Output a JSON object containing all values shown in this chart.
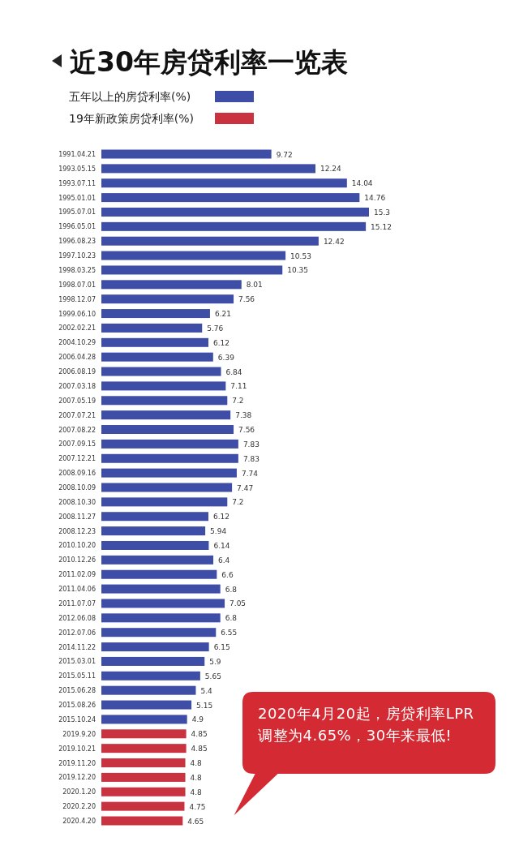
{
  "chart_data": {
    "type": "bar",
    "orientation": "horizontal",
    "stacked": true,
    "data_labels": true,
    "grid": false,
    "legend": "top left",
    "title": "近30年房贷利率一览表",
    "categories": [
      "1991.04.21",
      "1993.05.15",
      "1993.07.11",
      "1995.01.01",
      "1995.07.01",
      "1996.05.01",
      "1996.08.23",
      "1997.10.23",
      "1998.03.25",
      "1998.07.01",
      "1998.12.07",
      "1999.06.10",
      "2002.02.21",
      "2004.10.29",
      "2006.04.28",
      "2006.08.19",
      "2007.03.18",
      "2007.05.19",
      "2007.07.21",
      "2007.08.22",
      "2007.09.15",
      "2007.12.21",
      "2008.09.16",
      "2008.10.09",
      "2008.10.30",
      "2008.11.27",
      "2008.12.23",
      "2010.10.20",
      "2010.12.26",
      "2011.02.09",
      "2011.04.06",
      "2011.07.07",
      "2012.06.08",
      "2012.07.06",
      "2014.11.22",
      "2015.03.01",
      "2015.05.11",
      "2015.06.28",
      "2015.08.26",
      "2015.10.24",
      "2019.9.20",
      "2019.10.21",
      "2019.11.20",
      "2019.12.20",
      "2020.1.20",
      "2020.2.20",
      "2020.4.20"
    ],
    "series": [
      {
        "name": "五年以上的房贷利率(%)",
        "color": "#3e4da6",
        "values": [
          9.72,
          12.24,
          14.04,
          14.76,
          15.3,
          15.12,
          12.42,
          10.53,
          10.35,
          8.01,
          7.56,
          6.21,
          5.76,
          6.12,
          6.39,
          6.84,
          7.11,
          7.2,
          7.38,
          7.56,
          7.83,
          7.83,
          7.74,
          7.47,
          7.2,
          6.12,
          5.94,
          6.14,
          6.4,
          6.6,
          6.8,
          7.05,
          6.8,
          6.55,
          6.15,
          5.9,
          5.65,
          5.4,
          5.15,
          4.9,
          null,
          null,
          null,
          null,
          null,
          null,
          null
        ]
      },
      {
        "name": "19年新政策房贷利率(%)",
        "color": "#c9323f",
        "values": [
          null,
          null,
          null,
          null,
          null,
          null,
          null,
          null,
          null,
          null,
          null,
          null,
          null,
          null,
          null,
          null,
          null,
          null,
          null,
          null,
          null,
          null,
          null,
          null,
          null,
          null,
          null,
          null,
          null,
          null,
          null,
          null,
          null,
          null,
          null,
          null,
          null,
          null,
          null,
          null,
          4.85,
          4.85,
          4.8,
          4.8,
          4.8,
          4.75,
          4.65
        ]
      }
    ],
    "annotations": [
      "2020年4月20起，房贷利率LPR调整为4.65%，30年来最低!"
    ]
  }
}
